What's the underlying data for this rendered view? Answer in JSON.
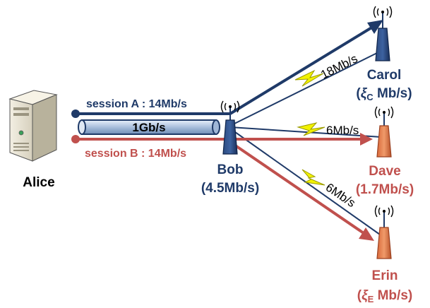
{
  "session_a": "session A : 14Mb/s",
  "session_b": "session B : 14Mb/s",
  "pipe_label": "1Gb/s",
  "alice": {
    "name": "Alice"
  },
  "bob": {
    "name": "Bob",
    "rate": "(4.5Mb/s)"
  },
  "carol": {
    "name": "Carol",
    "rate_sym": "ξ",
    "rate_sub": "C",
    "rate_unit": " Mb/s)"
  },
  "dave": {
    "name": "Dave",
    "rate": "(1.7Mb/s)"
  },
  "erin": {
    "name": "Erin",
    "rate_sym": "ξ",
    "rate_sub": "E",
    "rate_unit": " Mb/s)"
  },
  "links": {
    "carol": "18Mb/s",
    "dave": "6Mb/s",
    "erin": "6Mb/s"
  },
  "colors": {
    "blue": "#1f3a68",
    "red": "#c0504d",
    "orange": "#e07a4a",
    "bolt": "#f2f200"
  },
  "icons": [
    "server-icon",
    "antenna-icon",
    "lightning-bolt-icon",
    "signal-waves-icon"
  ]
}
